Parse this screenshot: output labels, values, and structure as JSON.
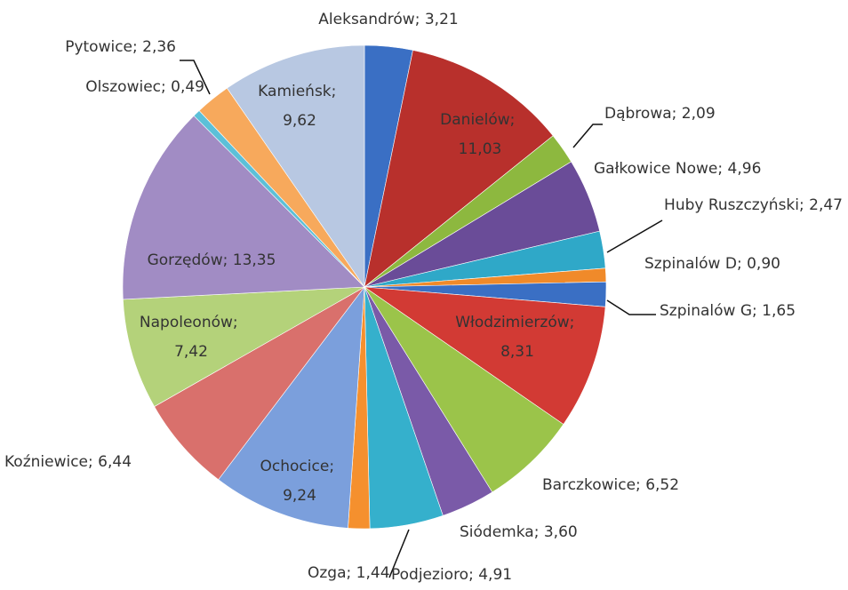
{
  "chart_data": {
    "type": "pie",
    "categories": [
      "Aleksandrów",
      "Danielów",
      "Dąbrowa",
      "Gałkowice Nowe",
      "Huby Ruszczyński",
      "Szpinalów D",
      "Szpinalów G",
      "Włodzimierzów",
      "Barczkowice",
      "Siódemka",
      "Podjezioro",
      "Ozga",
      "Ochocice",
      "Koźniewice",
      "Napoleonów",
      "Gorzędów",
      "Olszowiec",
      "Pytowice",
      "Kamieńsk"
    ],
    "values": [
      3.21,
      11.03,
      2.09,
      4.96,
      2.47,
      0.9,
      1.65,
      8.31,
      6.52,
      3.6,
      4.91,
      1.44,
      9.24,
      6.44,
      7.42,
      13.35,
      0.49,
      2.36,
      9.62
    ],
    "value_labels": [
      "3,21",
      "11,03",
      "2,09",
      "4,96",
      "2,47",
      "0,90",
      "1,65",
      "8,31",
      "6,52",
      "3,60",
      "4,91",
      "1,44",
      "9,24",
      "6,44",
      "7,42",
      "13,35",
      "0,49",
      "2,36",
      "9,62"
    ],
    "label_separator": "; ",
    "colors": [
      "#3a6fc4",
      "#b8302c",
      "#8db83f",
      "#6a4c98",
      "#2fa8c8",
      "#f08a2a",
      "#3a6fc4",
      "#d23a34",
      "#9bc44a",
      "#7a5aa8",
      "#35b0cc",
      "#f5902e",
      "#7b9fdc",
      "#d9706c",
      "#b4d27a",
      "#a18cc4",
      "#5cc0d8",
      "#f7a95c",
      "#b8c8e2"
    ]
  }
}
